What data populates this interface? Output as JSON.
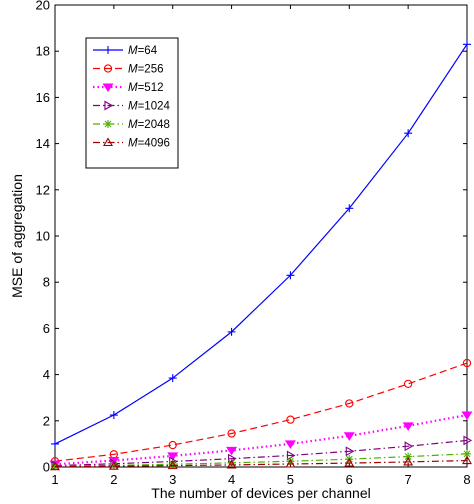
{
  "chart_data": {
    "type": "line",
    "title": "",
    "xlabel": "The number of  devices per channel",
    "ylabel": "MSE of aggregation",
    "x": [
      1,
      2,
      3,
      4,
      5,
      6,
      7,
      8
    ],
    "xlim": [
      1,
      8
    ],
    "ylim": [
      0,
      20
    ],
    "xticks": [
      "1",
      "2",
      "3",
      "4",
      "5",
      "6",
      "7",
      "8"
    ],
    "yticks": [
      "0",
      "2",
      "4",
      "6",
      "8",
      "10",
      "12",
      "14",
      "16",
      "18",
      "20"
    ],
    "grid": false,
    "legend_position": "top-left",
    "series": [
      {
        "name": "M=64",
        "name_italic": "M",
        "name_rest": "=64",
        "color": "#0000ff",
        "dash": "solid",
        "marker": "plus",
        "values": [
          1.0,
          2.25,
          3.85,
          5.85,
          8.3,
          11.2,
          14.45,
          18.3
        ]
      },
      {
        "name": "M=256",
        "name_italic": "M",
        "name_rest": "=256",
        "color": "#ff0000",
        "dash": "dashed",
        "marker": "circle",
        "values": [
          0.25,
          0.55,
          0.95,
          1.45,
          2.05,
          2.75,
          3.6,
          4.5
        ]
      },
      {
        "name": "M=512",
        "name_italic": "M",
        "name_rest": "=512",
        "color": "#ff00ff",
        "dash": "dotted",
        "marker": "triangle-down",
        "values": [
          0.12,
          0.28,
          0.48,
          0.72,
          1.0,
          1.35,
          1.78,
          2.25
        ]
      },
      {
        "name": "M=1024",
        "name_italic": "M",
        "name_rest": "=1024",
        "color": "#7f007f",
        "dash": "dashdot",
        "marker": "triangle-right",
        "values": [
          0.06,
          0.14,
          0.24,
          0.36,
          0.5,
          0.68,
          0.9,
          1.15
        ]
      },
      {
        "name": "M=2048",
        "name_italic": "M",
        "name_rest": "=2048",
        "color": "#4daf00",
        "dash": "dashdot",
        "marker": "star",
        "values": [
          0.03,
          0.07,
          0.12,
          0.18,
          0.25,
          0.34,
          0.45,
          0.57
        ]
      },
      {
        "name": "M=4096",
        "name_italic": "M",
        "name_rest": "=4096",
        "color": "#a00000",
        "dash": "dashdot",
        "marker": "triangle-up",
        "values": [
          0.015,
          0.035,
          0.06,
          0.09,
          0.13,
          0.17,
          0.22,
          0.28
        ]
      }
    ]
  }
}
